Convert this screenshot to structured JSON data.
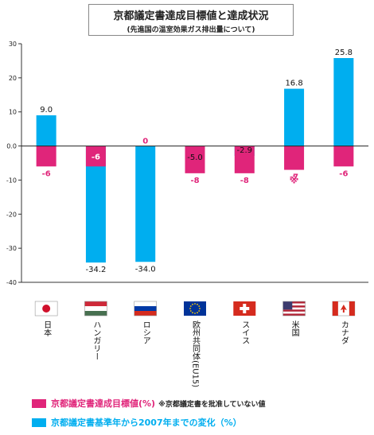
{
  "chart_data": {
    "type": "bar",
    "title": "京都議定書達成目標値と達成状況",
    "subtitle": "(先進国の温室効果ガス排出量について)",
    "ylim": [
      -40,
      30
    ],
    "yticks": [
      "30",
      "20",
      "10",
      "0.0",
      "-10",
      "-20",
      "-30",
      "-40"
    ],
    "categories": [
      "日本",
      "ハンガリー",
      "ロシア",
      "欧州共同体(EU15)",
      "スイス",
      "米国",
      "カナダ"
    ],
    "flag_icons": [
      "japan-flag-icon",
      "hungary-flag-icon",
      "russia-flag-icon",
      "eu-flag-icon",
      "switzerland-flag-icon",
      "usa-flag-icon",
      "canada-flag-icon"
    ],
    "series": [
      {
        "name": "京都議定書達成目標値(%)",
        "color": "#e0257a",
        "values": [
          -6,
          -6,
          0,
          -8,
          -8,
          -7,
          -6
        ],
        "labels": [
          "-6",
          "-6",
          "0",
          "-8",
          "-8",
          "-7",
          "-6"
        ]
      },
      {
        "name": "京都議定書基準年から2007年までの変化（%）",
        "color": "#00aeef",
        "values": [
          9.0,
          -34.2,
          -34.0,
          -5.0,
          -2.9,
          16.8,
          25.8
        ],
        "labels": [
          "9.0",
          "-34.2",
          "-34.0",
          "-5.0",
          "-2.9",
          "16.8",
          "25.8"
        ]
      }
    ],
    "annotation": "※",
    "legend_note": "※京都議定書を批准していない値",
    "legend_position": "bottom"
  }
}
